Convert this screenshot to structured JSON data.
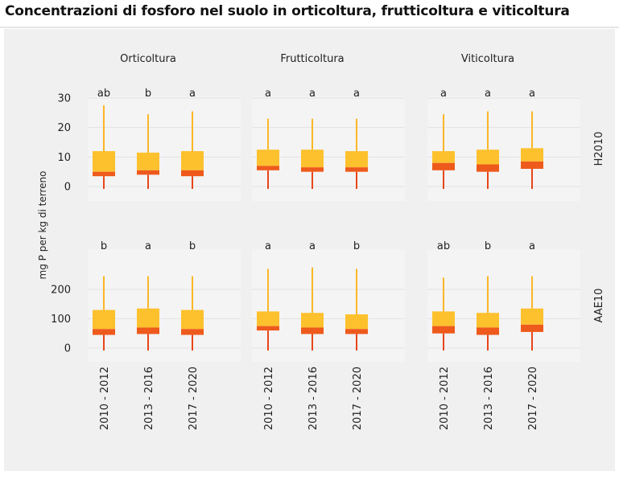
{
  "title": "Concentrazioni di fosforo nel suolo in orticoltura, frutticoltura e viticoltura",
  "chart_data": {
    "type": "box",
    "ylabel": "mg P per kg di terreno",
    "columns": [
      "Orticoltura",
      "Frutticoltura",
      "Viticoltura"
    ],
    "rows": [
      {
        "label": "H2010",
        "yticks": [
          0,
          10,
          20,
          30
        ],
        "ylim": [
          -1.5,
          31
        ],
        "panels": [
          {
            "column": "Orticoltura",
            "boxes": [
              {
                "category": "2010 - 2012",
                "letter": "ab",
                "min": 0,
                "q1": 3.5,
                "median": 5,
                "q3": 12,
                "max": 27.5
              },
              {
                "category": "2013 - 2016",
                "letter": "b",
                "min": 0,
                "q1": 4,
                "median": 5.5,
                "q3": 11.5,
                "max": 24.5
              },
              {
                "category": "2017 - 2020",
                "letter": "a",
                "min": 0,
                "q1": 3.5,
                "median": 5.5,
                "q3": 12,
                "max": 25.5
              }
            ]
          },
          {
            "column": "Frutticoltura",
            "boxes": [
              {
                "category": "2010 - 2012",
                "letter": "a",
                "min": 0,
                "q1": 5.5,
                "median": 7,
                "q3": 12.5,
                "max": 23
              },
              {
                "category": "2013 - 2016",
                "letter": "a",
                "min": 0,
                "q1": 5,
                "median": 6.5,
                "q3": 12.5,
                "max": 23
              },
              {
                "category": "2017 - 2020",
                "letter": "a",
                "min": 0,
                "q1": 5,
                "median": 6.5,
                "q3": 12,
                "max": 23
              }
            ]
          },
          {
            "column": "Viticoltura",
            "boxes": [
              {
                "category": "2010 - 2012",
                "letter": "a",
                "min": 0,
                "q1": 5.5,
                "median": 8,
                "q3": 12,
                "max": 24.5
              },
              {
                "category": "2013 - 2016",
                "letter": "a",
                "min": 0,
                "q1": 5,
                "median": 7.5,
                "q3": 12.5,
                "max": 25.5
              },
              {
                "category": "2017 - 2020",
                "letter": "a",
                "min": 0,
                "q1": 6,
                "median": 8.5,
                "q3": 13,
                "max": 25.5
              }
            ]
          }
        ]
      },
      {
        "label": "AAE10",
        "yticks": [
          0,
          100,
          200
        ],
        "ylim": [
          -15,
          275
        ],
        "panels": [
          {
            "column": "Orticoltura",
            "boxes": [
              {
                "category": "2010 - 2012",
                "letter": "b",
                "min": 0,
                "q1": 45,
                "median": 65,
                "q3": 130,
                "max": 245
              },
              {
                "category": "2013 - 2016",
                "letter": "a",
                "min": 0,
                "q1": 48,
                "median": 70,
                "q3": 135,
                "max": 245
              },
              {
                "category": "2017 - 2020",
                "letter": "b",
                "min": 0,
                "q1": 45,
                "median": 65,
                "q3": 130,
                "max": 245
              }
            ]
          },
          {
            "column": "Frutticoltura",
            "boxes": [
              {
                "category": "2010 - 2012",
                "letter": "a",
                "min": 0,
                "q1": 60,
                "median": 75,
                "q3": 125,
                "max": 270
              },
              {
                "category": "2013 - 2016",
                "letter": "a",
                "min": 0,
                "q1": 48,
                "median": 70,
                "q3": 120,
                "max": 275
              },
              {
                "category": "2017 - 2020",
                "letter": "b",
                "min": 0,
                "q1": 48,
                "median": 65,
                "q3": 115,
                "max": 270
              }
            ]
          },
          {
            "column": "Viticoltura",
            "boxes": [
              {
                "category": "2010 - 2012",
                "letter": "ab",
                "min": 0,
                "q1": 50,
                "median": 75,
                "q3": 125,
                "max": 240
              },
              {
                "category": "2013 - 2016",
                "letter": "b",
                "min": 0,
                "q1": 45,
                "median": 70,
                "q3": 120,
                "max": 245
              },
              {
                "category": "2017 - 2020",
                "letter": "a",
                "min": 0,
                "q1": 55,
                "median": 80,
                "q3": 135,
                "max": 245
              }
            ]
          }
        ]
      }
    ],
    "colors": {
      "upper_box": "#fdc12e",
      "lower_box": "#ee5a1c",
      "whisker_upper": "#fbb625",
      "whisker_lower": "#e8461a",
      "panel_grid": "#e2e2e2",
      "background": "#f0f0f0"
    }
  }
}
